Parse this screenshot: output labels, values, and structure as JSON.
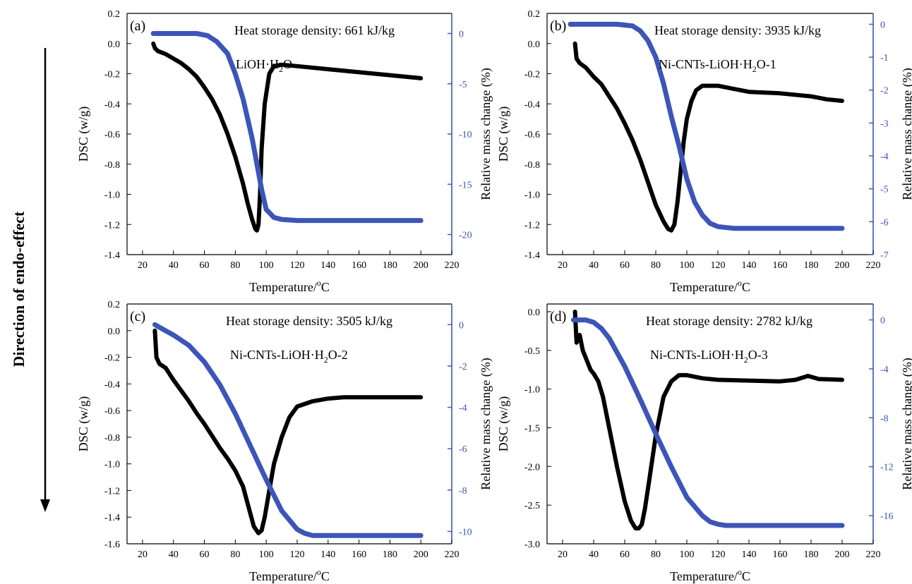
{
  "side_label": "Direction of endo-effect",
  "colors": {
    "dsc": "#000000",
    "mass": "#3d55b8",
    "axis_right": "#3d55b8"
  },
  "chart_data": [
    {
      "type": "line",
      "panel": "(a)",
      "annotation": "Heat storage density: 661 kJ/kg",
      "sample_label": "LiOH·H",
      "sample_sub": "2",
      "sample_tail": "O",
      "xlabel_main": "Temperature/",
      "xlabel_sup": "o",
      "xlabel_tail": "C",
      "ylabel": "DSC (w/g)",
      "y2label": "Relative mass change (%)",
      "xlim": [
        10,
        220
      ],
      "xticks": [
        20,
        40,
        60,
        80,
        100,
        120,
        140,
        160,
        180,
        200,
        220
      ],
      "ylim": [
        -1.4,
        0.2
      ],
      "yticks": [
        "0.2",
        "0.0",
        "-0.2",
        "-0.4",
        "-0.6",
        "-0.8",
        "-1.0",
        "-1.2",
        "-1.4"
      ],
      "y2lim": [
        -22,
        2
      ],
      "y2ticks": [
        "0",
        "-5",
        "-10",
        "-15",
        "-20"
      ],
      "series": [
        {
          "axis": "left",
          "x": [
            27,
            28,
            30,
            35,
            40,
            45,
            50,
            55,
            60,
            65,
            70,
            75,
            80,
            85,
            88,
            91,
            93,
            94,
            95,
            96,
            97,
            99,
            102,
            105,
            110,
            120,
            140,
            160,
            180,
            200
          ],
          "y": [
            0.0,
            -0.03,
            -0.05,
            -0.07,
            -0.1,
            -0.13,
            -0.17,
            -0.22,
            -0.29,
            -0.37,
            -0.47,
            -0.6,
            -0.75,
            -0.93,
            -1.06,
            -1.17,
            -1.23,
            -1.24,
            -1.2,
            -1.0,
            -0.7,
            -0.4,
            -0.2,
            -0.15,
            -0.14,
            -0.15,
            -0.17,
            -0.19,
            -0.21,
            -0.23
          ]
        },
        {
          "axis": "right",
          "x": [
            27,
            40,
            55,
            62,
            68,
            75,
            80,
            85,
            88,
            91,
            94,
            97,
            100,
            105,
            110,
            120,
            140,
            160,
            180,
            200
          ],
          "y": [
            0,
            0,
            0,
            -0.2,
            -0.8,
            -2.0,
            -4.0,
            -6.5,
            -8.5,
            -10.5,
            -13.0,
            -15.5,
            -17.5,
            -18.3,
            -18.5,
            -18.6,
            -18.6,
            -18.6,
            -18.6,
            -18.6
          ]
        }
      ]
    },
    {
      "type": "line",
      "panel": "(b)",
      "annotation": "Heat storage density: 3935 kJ/kg",
      "sample_label": "Ni-CNTs-LiOH·H",
      "sample_sub": "2",
      "sample_tail": "O-1",
      "xlabel_main": "Temperature/",
      "xlabel_sup": "o",
      "xlabel_tail": "C",
      "ylabel": "DSC (w/g)",
      "y2label": "Relative mass change (%)",
      "xlim": [
        10,
        220
      ],
      "xticks": [
        20,
        40,
        60,
        80,
        100,
        120,
        140,
        160,
        180,
        200,
        220
      ],
      "ylim": [
        -1.4,
        0.2
      ],
      "yticks": [
        "0.2",
        "0.0",
        "-0.2",
        "-0.4",
        "-0.6",
        "-0.8",
        "-1.0",
        "-1.2",
        "-1.4"
      ],
      "y2lim": [
        -7,
        0.33
      ],
      "y2ticks": [
        "0",
        "-1",
        "-2",
        "-3",
        "-4",
        "-5",
        "-6",
        "-7"
      ],
      "series": [
        {
          "axis": "left",
          "x": [
            28,
            29,
            31,
            35,
            40,
            45,
            50,
            55,
            60,
            65,
            70,
            75,
            80,
            85,
            88,
            90,
            92,
            94,
            96,
            98,
            100,
            103,
            106,
            110,
            120,
            130,
            140,
            160,
            180,
            190,
            200
          ],
          "y": [
            0.0,
            -0.1,
            -0.13,
            -0.16,
            -0.22,
            -0.27,
            -0.35,
            -0.43,
            -0.53,
            -0.64,
            -0.77,
            -0.92,
            -1.07,
            -1.18,
            -1.23,
            -1.24,
            -1.2,
            -1.05,
            -0.85,
            -0.65,
            -0.5,
            -0.38,
            -0.31,
            -0.28,
            -0.28,
            -0.3,
            -0.32,
            -0.33,
            -0.35,
            -0.37,
            -0.38
          ]
        },
        {
          "axis": "right",
          "x": [
            25,
            40,
            55,
            65,
            70,
            75,
            80,
            85,
            90,
            95,
            100,
            105,
            110,
            115,
            120,
            130,
            140,
            160,
            180,
            200
          ],
          "y": [
            0,
            0,
            0,
            -0.05,
            -0.2,
            -0.5,
            -1.0,
            -1.8,
            -2.8,
            -3.7,
            -4.7,
            -5.4,
            -5.8,
            -6.05,
            -6.15,
            -6.2,
            -6.2,
            -6.2,
            -6.2,
            -6.2
          ]
        }
      ]
    },
    {
      "type": "line",
      "panel": "(c)",
      "annotation": "Heat storage density: 3505 kJ/kg",
      "sample_label": "Ni-CNTs-LiOH·H",
      "sample_sub": "2",
      "sample_tail": "O-2",
      "xlabel_main": "Temperature/",
      "xlabel_sup": "o",
      "xlabel_tail": "C",
      "ylabel": "DSC (w/g)",
      "y2label": "Relative mass change (%)",
      "xlim": [
        10,
        220
      ],
      "xticks": [
        20,
        40,
        60,
        80,
        100,
        120,
        140,
        160,
        180,
        200,
        220
      ],
      "ylim": [
        -1.6,
        0.2
      ],
      "yticks": [
        "0.2",
        "0.0",
        "-0.2",
        "-0.4",
        "-0.6",
        "-0.8",
        "-1.0",
        "-1.2",
        "-1.4",
        "-1.6"
      ],
      "y2lim": [
        -10.6,
        1.0
      ],
      "y2ticks": [
        "0",
        "-2",
        "-4",
        "-6",
        "-8",
        "-10"
      ],
      "series": [
        {
          "axis": "left",
          "x": [
            28,
            29,
            31,
            35,
            40,
            45,
            50,
            55,
            60,
            65,
            70,
            75,
            80,
            85,
            88,
            92,
            95,
            97,
            99,
            102,
            105,
            110,
            115,
            120,
            130,
            140,
            150,
            160,
            180,
            200
          ],
          "y": [
            0.0,
            -0.2,
            -0.25,
            -0.28,
            -0.37,
            -0.45,
            -0.53,
            -0.62,
            -0.7,
            -0.79,
            -0.88,
            -0.96,
            -1.05,
            -1.17,
            -1.3,
            -1.47,
            -1.52,
            -1.5,
            -1.4,
            -1.2,
            -1.0,
            -0.8,
            -0.65,
            -0.57,
            -0.53,
            -0.51,
            -0.5,
            -0.5,
            -0.5,
            -0.5
          ]
        },
        {
          "axis": "right",
          "x": [
            28,
            35,
            40,
            50,
            60,
            70,
            80,
            90,
            100,
            110,
            120,
            125,
            130,
            140,
            160,
            180,
            200
          ],
          "y": [
            0,
            -0.3,
            -0.5,
            -1.0,
            -1.8,
            -2.9,
            -4.3,
            -5.9,
            -7.5,
            -9.0,
            -9.9,
            -10.1,
            -10.2,
            -10.2,
            -10.2,
            -10.2,
            -10.2
          ]
        }
      ]
    },
    {
      "type": "line",
      "panel": "(d)",
      "annotation": "Heat storage density: 2782 kJ/kg",
      "sample_label": "Ni-CNTs-LiOH·H",
      "sample_sub": "2",
      "sample_tail": "O-3",
      "xlabel_main": "Temperature/",
      "xlabel_sup": "o",
      "xlabel_tail": "C",
      "ylabel": "DSC (w/g)",
      "y2label": "Relative mass change (%)",
      "xlim": [
        10,
        220
      ],
      "xticks": [
        20,
        40,
        60,
        80,
        100,
        120,
        140,
        160,
        180,
        200,
        220
      ],
      "ylim": [
        -3.0,
        0.1
      ],
      "yticks": [
        "0.0",
        "-0.5",
        "-1.0",
        "-1.5",
        "-2.0",
        "-2.5",
        "-3.0"
      ],
      "y2lim": [
        -18.3,
        1.3
      ],
      "y2ticks": [
        "0",
        "-4",
        "-8",
        "-12",
        "-16"
      ],
      "series": [
        {
          "axis": "left",
          "x": [
            28,
            29,
            31,
            33,
            35,
            38,
            40,
            43,
            46,
            50,
            55,
            60,
            64,
            67,
            69,
            71,
            73,
            76,
            80,
            85,
            90,
            95,
            100,
            110,
            120,
            140,
            160,
            170,
            178,
            185,
            200
          ],
          "y": [
            0.0,
            -0.4,
            -0.3,
            -0.5,
            -0.6,
            -0.75,
            -0.8,
            -0.9,
            -1.1,
            -1.5,
            -2.0,
            -2.45,
            -2.7,
            -2.8,
            -2.8,
            -2.75,
            -2.55,
            -2.15,
            -1.6,
            -1.1,
            -0.9,
            -0.82,
            -0.82,
            -0.86,
            -0.88,
            -0.89,
            -0.9,
            -0.88,
            -0.83,
            -0.87,
            -0.88
          ]
        },
        {
          "axis": "right",
          "x": [
            27,
            35,
            40,
            45,
            50,
            60,
            70,
            80,
            90,
            100,
            110,
            115,
            120,
            125,
            140,
            160,
            180,
            200
          ],
          "y": [
            0,
            0,
            -0.2,
            -0.7,
            -1.5,
            -3.8,
            -6.5,
            -9.3,
            -12.0,
            -14.5,
            -16.0,
            -16.5,
            -16.7,
            -16.8,
            -16.8,
            -16.8,
            -16.8,
            -16.8
          ]
        }
      ]
    }
  ]
}
